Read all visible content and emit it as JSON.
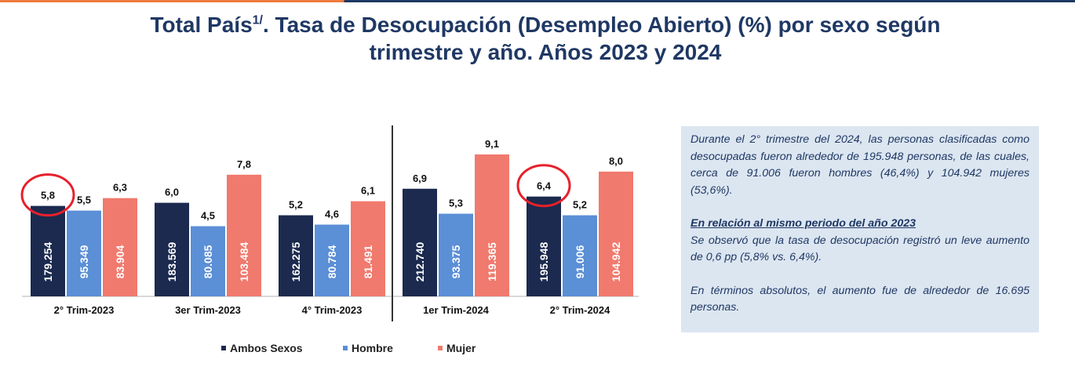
{
  "colors": {
    "ambos": "#1b2a4e",
    "hombre": "#5b8fd6",
    "mujer": "#f07a6e",
    "title": "#1f3864",
    "highlight": "#e8202b",
    "divider": "#333333"
  },
  "title": {
    "prefix": "Total País",
    "sup": "1/",
    "rest": ". Tasa de Desocupación (Desempleo Abierto) (%) por sexo según",
    "line2": "trimestre y año. Años 2023 y 2024"
  },
  "chart_data": {
    "type": "bar",
    "title": "Total País 1/. Tasa de Desocupación (Desempleo Abierto) (%) por sexo según trimestre y año. Años 2023 y 2024",
    "categories": [
      "2° Trim-2023",
      "3er Trim-2023",
      "4° Trim-2023",
      "1er Trim-2024",
      "2° Trim-2024"
    ],
    "series": [
      {
        "name": "Ambos Sexos",
        "values": [
          5.8,
          6.0,
          5.2,
          6.9,
          6.4
        ],
        "value_labels": [
          "5,8",
          "6,0",
          "5,2",
          "6,9",
          "6,4"
        ],
        "inner_labels": [
          "179.254",
          "183.569",
          "162.275",
          "212.740",
          "195.948"
        ]
      },
      {
        "name": "Hombre",
        "values": [
          5.5,
          4.5,
          4.6,
          5.3,
          5.2
        ],
        "value_labels": [
          "5,5",
          "4,5",
          "4,6",
          "5,3",
          "5,2"
        ],
        "inner_labels": [
          "95.349",
          "80.085",
          "80.784",
          "93.375",
          "91.006"
        ]
      },
      {
        "name": "Mujer",
        "values": [
          6.3,
          7.8,
          6.1,
          9.1,
          8.0
        ],
        "value_labels": [
          "6,3",
          "7,8",
          "6,1",
          "9,1",
          "8,0"
        ],
        "inner_labels": [
          "83.904",
          "103.484",
          "81.491",
          "119.365",
          "104.942"
        ]
      }
    ],
    "ylim": [
      0,
      9.1
    ],
    "xlabel": "",
    "ylabel": "",
    "legend_position": "bottom",
    "divider_after_category": 2,
    "highlighted_labels": [
      {
        "series": 0,
        "category": 0
      },
      {
        "series": 0,
        "category": 4
      }
    ]
  },
  "textbox": {
    "p1": "Durante el 2° trimestre del 2024, las personas clasificadas como desocupadas fueron alrededor de 195.948 personas, de las cuales, cerca de 91.006 fueron hombres (46,4%) y 104.942 mujeres (53,6%).",
    "heading": "En relación al mismo periodo del año 2023",
    "p2": "Se observó que la tasa de desocupación registró un leve aumento de 0,6 pp (5,8% vs. 6,4%).",
    "p3": "En términos absolutos, el aumento fue de alrededor de 16.695 personas."
  }
}
